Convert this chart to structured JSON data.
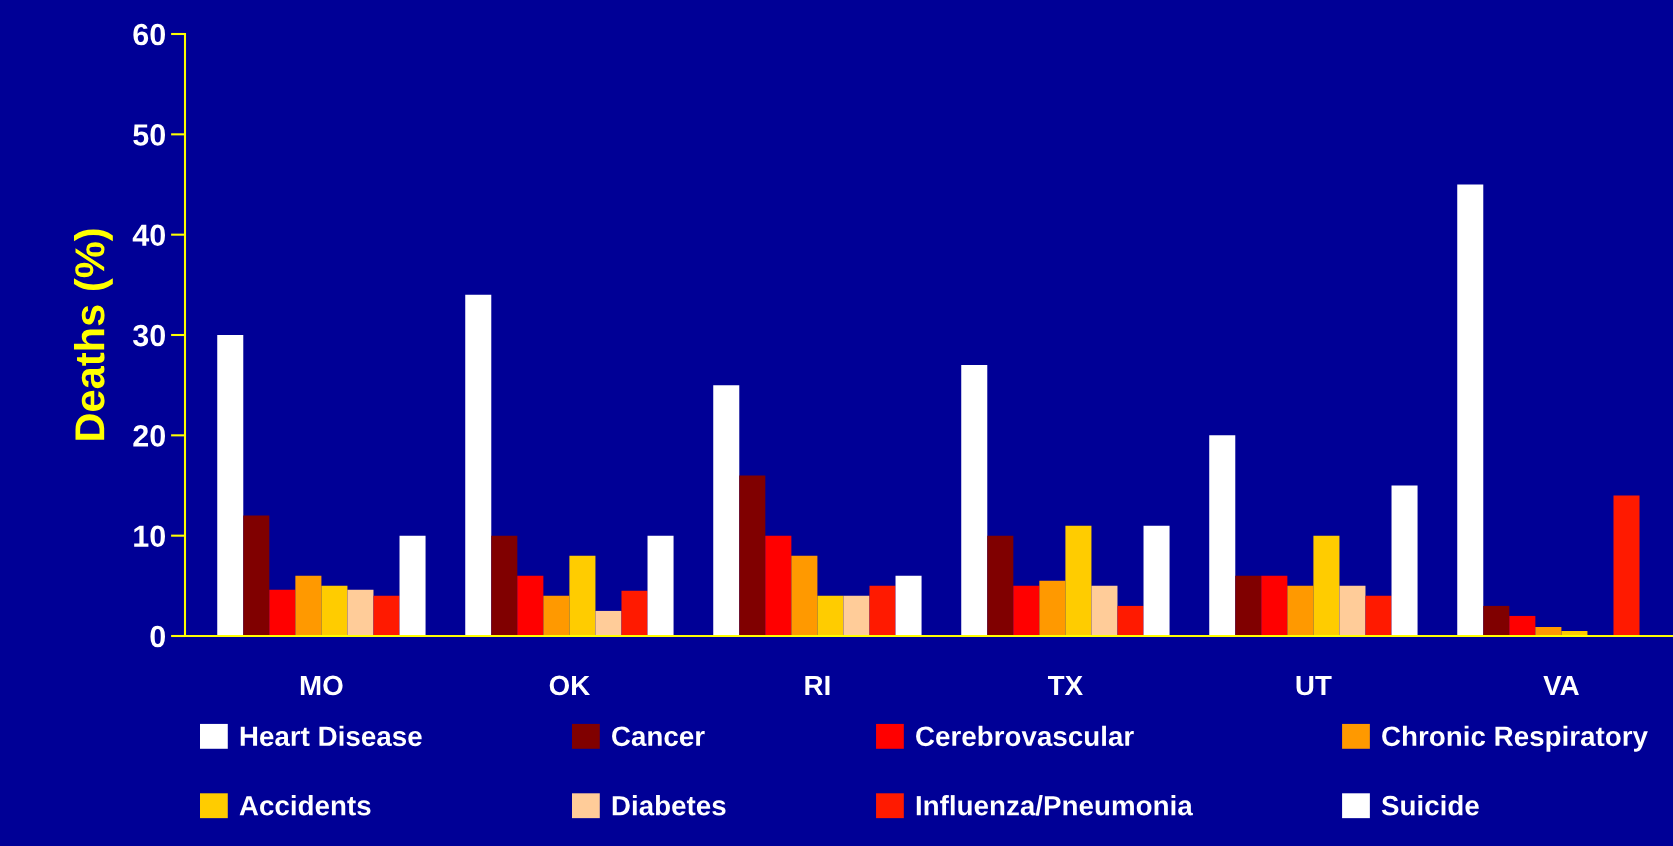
{
  "chart_data": {
    "type": "bar",
    "ylabel": "Deaths (%)",
    "categories": [
      "MO",
      "OK",
      "RI",
      "TX",
      "UT",
      "VA"
    ],
    "series": [
      {
        "name": "Heart Disease",
        "color": "#ffffff",
        "values": [
          30,
          34,
          25,
          27,
          20,
          45
        ]
      },
      {
        "name": "Cancer",
        "color": "#800000",
        "values": [
          12,
          10,
          16,
          10,
          6,
          3
        ]
      },
      {
        "name": "Cerebrovascular",
        "color": "#ff0000",
        "values": [
          4.6,
          6,
          10,
          5,
          6,
          2
        ]
      },
      {
        "name": "Chronic Respiratory",
        "color": "#ff9900",
        "values": [
          6,
          4,
          8,
          5.5,
          5,
          0.9
        ]
      },
      {
        "name": "Accidents",
        "color": "#ffcc00",
        "values": [
          5,
          8,
          4,
          11,
          10,
          0.5
        ]
      },
      {
        "name": "Diabetes",
        "color": "#ffcc99",
        "values": [
          4.6,
          2.5,
          4,
          5,
          5,
          null
        ]
      },
      {
        "name": "Influenza/Pneumonia",
        "color": "#ff1a00",
        "values": [
          4,
          4.5,
          5,
          3,
          4,
          14
        ]
      },
      {
        "name": "Suicide",
        "color": "#ffffff",
        "values": [
          10,
          10,
          6,
          11,
          15,
          null
        ]
      }
    ],
    "ylim": [
      0,
      60
    ],
    "yticks": [
      0,
      10,
      20,
      30,
      40,
      50,
      60
    ],
    "grid": false,
    "legend": "bottom"
  }
}
